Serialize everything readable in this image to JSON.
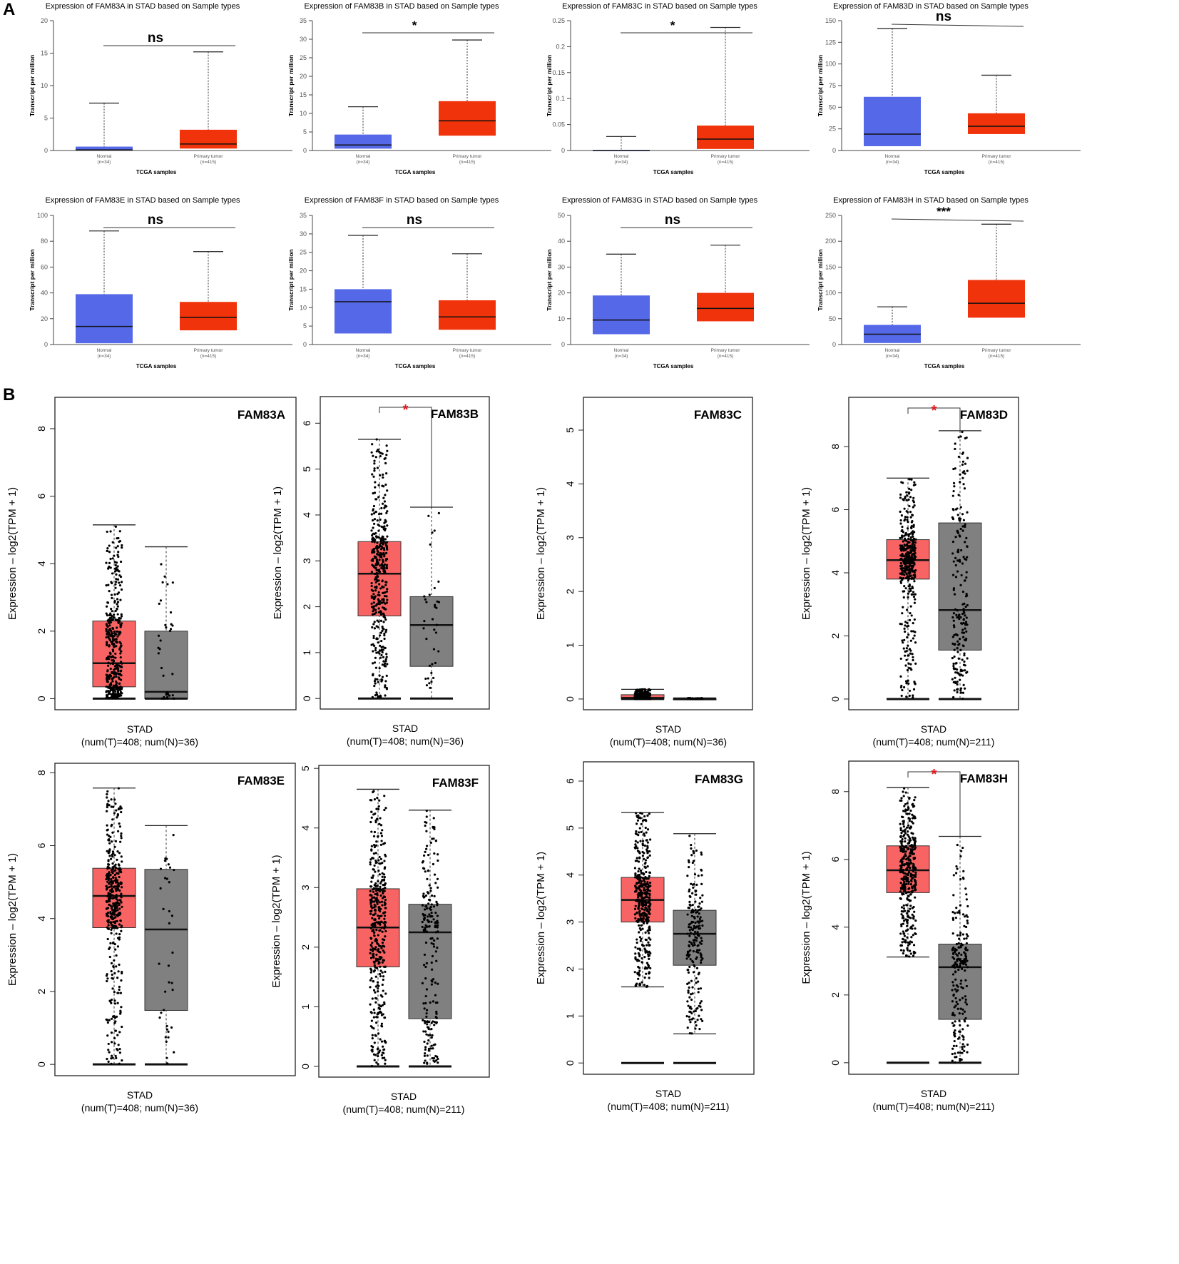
{
  "panel_labels": {
    "a": "A",
    "b": "B"
  },
  "chart_data": [
    {
      "panel": "A",
      "type": "box",
      "title": "Expression of FAM83A in STAD based on Sample types",
      "xlabel": "TCGA samples",
      "ylabel": "Transcript per million",
      "ylim": [
        0,
        20
      ],
      "yticks": [
        0,
        5,
        10,
        15,
        20
      ],
      "categories": [
        "Normal",
        "Primary tumor"
      ],
      "n_labels": [
        "(n=34)",
        "(n=415)"
      ],
      "boxes": [
        [
          0,
          0,
          0.1,
          0.6,
          7.3
        ],
        [
          0,
          0.3,
          1.0,
          3.2,
          15.2
        ]
      ],
      "significance": "ns"
    },
    {
      "panel": "A",
      "type": "box",
      "title": "Expression of FAM83B in STAD based on Sample types",
      "xlabel": "TCGA samples",
      "ylabel": "Transcript per million",
      "ylim": [
        0,
        35
      ],
      "yticks": [
        0,
        5,
        10,
        15,
        20,
        25,
        30,
        35
      ],
      "categories": [
        "Normal",
        "Primary tumor"
      ],
      "n_labels": [
        "(n=34)",
        "(n=415)"
      ],
      "boxes": [
        [
          0,
          0.5,
          1.5,
          4.3,
          11.8
        ],
        [
          0,
          4,
          8,
          13.3,
          29.8
        ]
      ],
      "significance": "*"
    },
    {
      "panel": "A",
      "type": "box",
      "title": "Expression of FAM83C in STAD based on Sample types",
      "xlabel": "TCGA samples",
      "ylabel": "Transcript per million",
      "ylim": [
        0,
        0.25
      ],
      "yticks": [
        0,
        0.05,
        0.1,
        0.15,
        0.2,
        0.25
      ],
      "categories": [
        "Normal",
        "Primary tumor"
      ],
      "n_labels": [
        "(n=34)",
        "(n=415)"
      ],
      "boxes": [
        [
          0,
          0,
          0,
          0.001,
          0.027
        ],
        [
          0,
          0.003,
          0.022,
          0.048,
          0.237
        ]
      ],
      "significance": "*"
    },
    {
      "panel": "A",
      "type": "box",
      "title": "Expression of FAM83D in STAD based on Sample types",
      "xlabel": "TCGA samples",
      "ylabel": "Transcript per million",
      "ylim": [
        0,
        150
      ],
      "yticks": [
        0,
        25,
        50,
        75,
        100,
        125,
        150
      ],
      "categories": [
        "Normal",
        "Primary tumor"
      ],
      "n_labels": [
        "(n=34)",
        "(n=415)"
      ],
      "boxes": [
        [
          2,
          5,
          19,
          62,
          141
        ],
        [
          1,
          19,
          28,
          43,
          87
        ]
      ],
      "significance": "ns"
    },
    {
      "panel": "A",
      "type": "box",
      "title": "Expression of FAM83E in STAD based on Sample types",
      "xlabel": "TCGA samples",
      "ylabel": "Transcript per million",
      "ylim": [
        0,
        100
      ],
      "yticks": [
        0,
        20,
        40,
        60,
        80,
        100
      ],
      "categories": [
        "Normal",
        "Primary tumor"
      ],
      "n_labels": [
        "(n=34)",
        "(n=415)"
      ],
      "boxes": [
        [
          0,
          1,
          14,
          39,
          88
        ],
        [
          0,
          11,
          21,
          33,
          72
        ]
      ],
      "significance": "ns"
    },
    {
      "panel": "A",
      "type": "box",
      "title": "Expression of FAM83F in STAD based on Sample types",
      "xlabel": "TCGA samples",
      "ylabel": "Transcript per million",
      "ylim": [
        0,
        35
      ],
      "yticks": [
        0,
        5,
        10,
        15,
        20,
        25,
        30,
        35
      ],
      "categories": [
        "Normal",
        "Primary tumor"
      ],
      "n_labels": [
        "(n=34)",
        "(n=415)"
      ],
      "boxes": [
        [
          0,
          3,
          11.6,
          15,
          29.6
        ],
        [
          0,
          4,
          7.5,
          12,
          24.6
        ]
      ],
      "significance": "ns"
    },
    {
      "panel": "A",
      "type": "box",
      "title": "Expression of FAM83G in STAD based on Sample types",
      "xlabel": "TCGA samples",
      "ylabel": "Transcript per million",
      "ylim": [
        0,
        50
      ],
      "yticks": [
        0,
        10,
        20,
        30,
        40,
        50
      ],
      "categories": [
        "Normal",
        "Primary tumor"
      ],
      "n_labels": [
        "(n=34)",
        "(n=415)"
      ],
      "boxes": [
        [
          1.5,
          4,
          9.5,
          19,
          35
        ],
        [
          1,
          9,
          14,
          20,
          38.5
        ]
      ],
      "significance": "ns"
    },
    {
      "panel": "A",
      "type": "box",
      "title": "Expression of FAM83H in STAD based on Sample types",
      "xlabel": "TCGA samples",
      "ylabel": "Transcript per million",
      "ylim": [
        0,
        250
      ],
      "yticks": [
        0,
        50,
        100,
        150,
        200,
        250
      ],
      "categories": [
        "Normal",
        "Primary tumor"
      ],
      "n_labels": [
        "(n=34)",
        "(n=415)"
      ],
      "boxes": [
        [
          0,
          3,
          20,
          38,
          73
        ],
        [
          3,
          52,
          80,
          125,
          233
        ]
      ],
      "significance": "***"
    },
    {
      "panel": "B",
      "type": "box",
      "title": "FAM83A",
      "ylabel": "Expression – log2(TPM + 1)",
      "ylim": [
        -0.33,
        8.93
      ],
      "yticks": [
        0,
        2,
        4,
        6,
        8
      ],
      "xlabel": "STAD",
      "counts": "(num(T)=408; num(N)=36)",
      "boxes": [
        [
          0,
          0.35,
          1.05,
          2.3,
          5.15
        ],
        [
          0,
          0,
          0.2,
          2.0,
          4.5
        ]
      ],
      "n_points": [
        408,
        36
      ],
      "significance": ""
    },
    {
      "panel": "B",
      "type": "box",
      "title": "FAM83B",
      "ylabel": "Expression – log2(TPM + 1)",
      "ylim": [
        -0.23,
        6.58
      ],
      "yticks": [
        0,
        1,
        2,
        3,
        4,
        5,
        6
      ],
      "xlabel": "STAD",
      "counts": "(num(T)=408; num(N)=36)",
      "boxes": [
        [
          0,
          1.8,
          2.72,
          3.42,
          5.65
        ],
        [
          0,
          0.7,
          1.6,
          2.22,
          4.17
        ]
      ],
      "n_points": [
        408,
        36
      ],
      "significance": "*"
    },
    {
      "panel": "B",
      "type": "box",
      "title": "FAM83C",
      "ylabel": "Expression – log2(TPM + 1)",
      "ylim": [
        -0.2,
        5.61
      ],
      "yticks": [
        0,
        1,
        2,
        3,
        4,
        5
      ],
      "xlabel": "STAD",
      "counts": "(num(T)=408; num(N)=36)",
      "boxes": [
        [
          0,
          0,
          0.02,
          0.08,
          0.18
        ],
        [
          0,
          0,
          0,
          0.01,
          0.02
        ]
      ],
      "n_points": [
        408,
        36
      ],
      "significance": ""
    },
    {
      "panel": "B",
      "type": "box",
      "title": "FAM83D",
      "ylabel": "Expression – log2(TPM + 1)",
      "ylim": [
        -0.34,
        9.56
      ],
      "yticks": [
        0,
        2,
        4,
        6,
        8
      ],
      "xlabel": "STAD",
      "counts": "(num(T)=408; num(N)=211)",
      "boxes": [
        [
          0,
          3.8,
          4.4,
          5.05,
          7.0
        ],
        [
          0,
          1.55,
          2.82,
          5.58,
          8.5
        ]
      ],
      "n_points": [
        408,
        211
      ],
      "significance": "*"
    },
    {
      "panel": "B",
      "type": "box",
      "title": "FAM83E",
      "ylabel": "Expression – log2(TPM + 1)",
      "ylim": [
        -0.31,
        8.26
      ],
      "yticks": [
        0,
        2,
        4,
        6,
        8
      ],
      "xlabel": "STAD",
      "counts": "(num(T)=408; num(N)=36)",
      "boxes": [
        [
          0,
          3.75,
          4.62,
          5.38,
          7.58
        ],
        [
          0,
          1.48,
          3.7,
          5.35,
          6.55
        ]
      ],
      "n_points": [
        408,
        36
      ],
      "significance": ""
    },
    {
      "panel": "B",
      "type": "box",
      "title": "FAM83F",
      "ylabel": "Expression – log2(TPM + 1)",
      "ylim": [
        -0.18,
        5.05
      ],
      "yticks": [
        0,
        1,
        2,
        3,
        4,
        5
      ],
      "xlabel": "STAD",
      "counts": "(num(T)=408; num(N)=211)",
      "boxes": [
        [
          0,
          1.67,
          2.33,
          2.98,
          4.65
        ],
        [
          0,
          0.8,
          2.25,
          2.72,
          4.3
        ]
      ],
      "n_points": [
        408,
        211
      ],
      "significance": ""
    },
    {
      "panel": "B",
      "type": "box",
      "title": "FAM83G",
      "ylabel": "Expression – log2(TPM + 1)",
      "ylim": [
        -0.24,
        6.41
      ],
      "yticks": [
        0,
        1,
        2,
        3,
        4,
        5,
        6
      ],
      "xlabel": "STAD",
      "counts": "(num(T)=408; num(N)=211)",
      "boxes": [
        [
          1.62,
          3.0,
          3.47,
          3.95,
          5.33
        ],
        [
          0.62,
          2.08,
          2.75,
          3.25,
          4.88
        ]
      ],
      "n_points": [
        408,
        211
      ],
      "significance": ""
    },
    {
      "panel": "B",
      "type": "box",
      "title": "FAM83H",
      "ylabel": "Expression – log2(TPM + 1)",
      "ylim": [
        -0.34,
        8.9
      ],
      "yticks": [
        0,
        2,
        4,
        6,
        8
      ],
      "xlabel": "STAD",
      "counts": "(num(T)=408; num(N)=211)",
      "boxes": [
        [
          3.12,
          5.02,
          5.68,
          6.4,
          8.12
        ],
        [
          0,
          1.28,
          2.82,
          3.5,
          6.68
        ]
      ],
      "n_points": [
        408,
        211
      ],
      "significance": "*"
    }
  ],
  "colors": {
    "a_normal": "#5468e8",
    "a_tumor": "#f0330a",
    "b_tumor": "#f86464",
    "b_normal": "#808080",
    "star": "#e8141e"
  }
}
